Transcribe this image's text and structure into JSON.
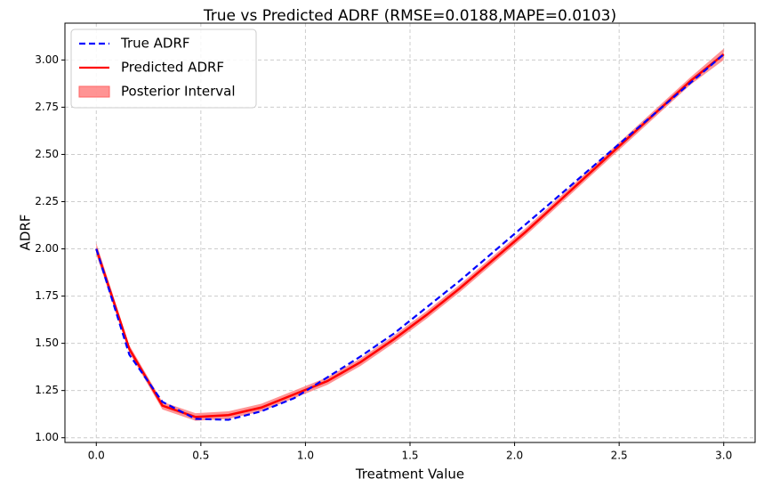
{
  "chart_data": {
    "type": "line",
    "title": "True vs Predicted ADRF (RMSE=0.0188,MAPE=0.0103)",
    "xlabel": "Treatment Value",
    "ylabel": "ADRF",
    "x": [
      0,
      0.158,
      0.316,
      0.474,
      0.632,
      0.789,
      0.947,
      1.105,
      1.263,
      1.421,
      1.579,
      1.737,
      1.895,
      2.053,
      2.211,
      2.368,
      2.526,
      2.684,
      2.842,
      3.0
    ],
    "series": [
      {
        "name": "True ADRF",
        "color": "#0000ff",
        "dash": true,
        "values": [
          2.0,
          1.44,
          1.19,
          1.1,
          1.095,
          1.14,
          1.21,
          1.32,
          1.43,
          1.55,
          1.69,
          1.83,
          1.98,
          2.13,
          2.28,
          2.43,
          2.58,
          2.73,
          2.88,
          3.03
        ]
      },
      {
        "name": "Predicted ADRF",
        "color": "#ff0000",
        "dash": false,
        "values": [
          2.0,
          1.47,
          1.17,
          1.11,
          1.12,
          1.16,
          1.23,
          1.3,
          1.4,
          1.52,
          1.65,
          1.79,
          1.94,
          2.09,
          2.25,
          2.41,
          2.57,
          2.73,
          2.89,
          3.03
        ]
      }
    ],
    "band": {
      "name": "Posterior Interval",
      "color": "#ff6666",
      "lower": [
        1.97,
        1.45,
        1.15,
        1.09,
        1.1,
        1.14,
        1.21,
        1.28,
        1.38,
        1.5,
        1.63,
        1.77,
        1.92,
        2.07,
        2.23,
        2.39,
        2.55,
        2.71,
        2.87,
        3.0
      ],
      "upper": [
        2.03,
        1.49,
        1.19,
        1.13,
        1.14,
        1.18,
        1.25,
        1.32,
        1.42,
        1.54,
        1.67,
        1.81,
        1.96,
        2.11,
        2.27,
        2.43,
        2.59,
        2.75,
        2.91,
        3.06
      ]
    },
    "xlim": [
      -0.15,
      3.15
    ],
    "ylim": [
      0.975,
      3.195
    ],
    "xticks": [
      {
        "value": 0,
        "label": "0.0"
      },
      {
        "value": 0.5,
        "label": "0.5"
      },
      {
        "value": 1,
        "label": "1.0"
      },
      {
        "value": 1.5,
        "label": "1.5"
      },
      {
        "value": 2,
        "label": "2.0"
      },
      {
        "value": 2.5,
        "label": "2.5"
      },
      {
        "value": 3,
        "label": "3.0"
      }
    ],
    "yticks": [
      {
        "value": 1,
        "label": "1.00"
      },
      {
        "value": 1.25,
        "label": "1.25"
      },
      {
        "value": 1.5,
        "label": "1.50"
      },
      {
        "value": 1.75,
        "label": "1.75"
      },
      {
        "value": 2,
        "label": "2.00"
      },
      {
        "value": 2.25,
        "label": "2.25"
      },
      {
        "value": 2.5,
        "label": "2.50"
      },
      {
        "value": 2.75,
        "label": "2.75"
      },
      {
        "value": 3,
        "label": "3.00"
      }
    ],
    "grid": true,
    "legend": "upper left"
  }
}
